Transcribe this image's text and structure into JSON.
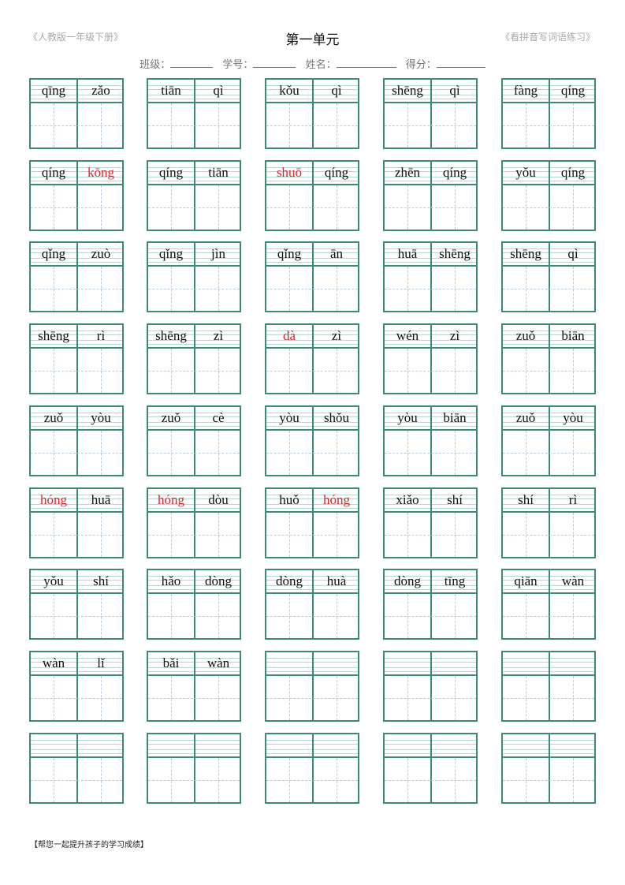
{
  "header": {
    "left": "《人教版一年级下册》",
    "title": "第一单元",
    "right": "《看拼音写词语练习》"
  },
  "info_fields": [
    "班级：",
    "学号：",
    "姓名：",
    "得分："
  ],
  "colors": {
    "grid": "#3d8a78",
    "highlight": "#e8202a"
  },
  "words": [
    [
      [
        "qīng",
        0
      ],
      [
        "zǎo",
        0
      ]
    ],
    [
      [
        "tiān",
        0
      ],
      [
        "qì",
        0
      ]
    ],
    [
      [
        "kǒu",
        0
      ],
      [
        "qì",
        0
      ]
    ],
    [
      [
        "shēng",
        0
      ],
      [
        "qì",
        0
      ]
    ],
    [
      [
        "fàng",
        0
      ],
      [
        "qíng",
        0
      ]
    ],
    [
      [
        "qíng",
        0
      ],
      [
        "kōng",
        1
      ]
    ],
    [
      [
        "qíng",
        0
      ],
      [
        "tiān",
        0
      ]
    ],
    [
      [
        "shuō",
        1
      ],
      [
        "qíng",
        0
      ]
    ],
    [
      [
        "zhēn",
        0
      ],
      [
        "qíng",
        0
      ]
    ],
    [
      [
        "yǒu",
        0
      ],
      [
        "qíng",
        0
      ]
    ],
    [
      [
        "qǐng",
        0
      ],
      [
        "zuò",
        0
      ]
    ],
    [
      [
        "qǐng",
        0
      ],
      [
        "jìn",
        0
      ]
    ],
    [
      [
        "qǐng",
        0
      ],
      [
        "ān",
        0
      ]
    ],
    [
      [
        "huā",
        0
      ],
      [
        "shēng",
        0
      ]
    ],
    [
      [
        "shēng",
        0
      ],
      [
        "qì",
        0
      ]
    ],
    [
      [
        "shēng",
        0
      ],
      [
        "rì",
        0
      ]
    ],
    [
      [
        "shēng",
        0
      ],
      [
        "zì",
        0
      ]
    ],
    [
      [
        "dà",
        1
      ],
      [
        "zì",
        0
      ]
    ],
    [
      [
        "wén",
        0
      ],
      [
        "zì",
        0
      ]
    ],
    [
      [
        "zuǒ",
        0
      ],
      [
        "biān",
        0
      ]
    ],
    [
      [
        "zuǒ",
        0
      ],
      [
        "yòu",
        0
      ]
    ],
    [
      [
        "zuǒ",
        0
      ],
      [
        "cè",
        0
      ]
    ],
    [
      [
        "yòu",
        0
      ],
      [
        "shǒu",
        0
      ]
    ],
    [
      [
        "yòu",
        0
      ],
      [
        "biān",
        0
      ]
    ],
    [
      [
        "zuǒ",
        0
      ],
      [
        "yòu",
        0
      ]
    ],
    [
      [
        "hóng",
        1
      ],
      [
        "huā",
        0
      ]
    ],
    [
      [
        "hóng",
        1
      ],
      [
        "dòu",
        0
      ]
    ],
    [
      [
        "huǒ",
        0
      ],
      [
        "hóng",
        1
      ]
    ],
    [
      [
        "xiǎo",
        0
      ],
      [
        "shí",
        0
      ]
    ],
    [
      [
        "shí",
        0
      ],
      [
        "rì",
        0
      ]
    ],
    [
      [
        "yǒu",
        0
      ],
      [
        "shí",
        0
      ]
    ],
    [
      [
        "hǎo",
        0
      ],
      [
        "dòng",
        0
      ]
    ],
    [
      [
        "dòng",
        0
      ],
      [
        "huà",
        0
      ]
    ],
    [
      [
        "dòng",
        0
      ],
      [
        "tīng",
        0
      ]
    ],
    [
      [
        "qiān",
        0
      ],
      [
        "wàn",
        0
      ]
    ],
    [
      [
        "wàn",
        0
      ],
      [
        "lǐ",
        0
      ]
    ],
    [
      [
        "bǎi",
        0
      ],
      [
        "wàn",
        0
      ]
    ],
    [
      [
        "",
        0
      ],
      [
        "",
        0
      ]
    ],
    [
      [
        "",
        0
      ],
      [
        "",
        0
      ]
    ],
    [
      [
        "",
        0
      ],
      [
        "",
        0
      ]
    ],
    [
      [
        "",
        0
      ],
      [
        "",
        0
      ]
    ],
    [
      [
        "",
        0
      ],
      [
        "",
        0
      ]
    ],
    [
      [
        "",
        0
      ],
      [
        "",
        0
      ]
    ],
    [
      [
        "",
        0
      ],
      [
        "",
        0
      ]
    ],
    [
      [
        "",
        0
      ],
      [
        "",
        0
      ]
    ]
  ],
  "footer": "【帮您一起提升孩子的学习成绩】"
}
